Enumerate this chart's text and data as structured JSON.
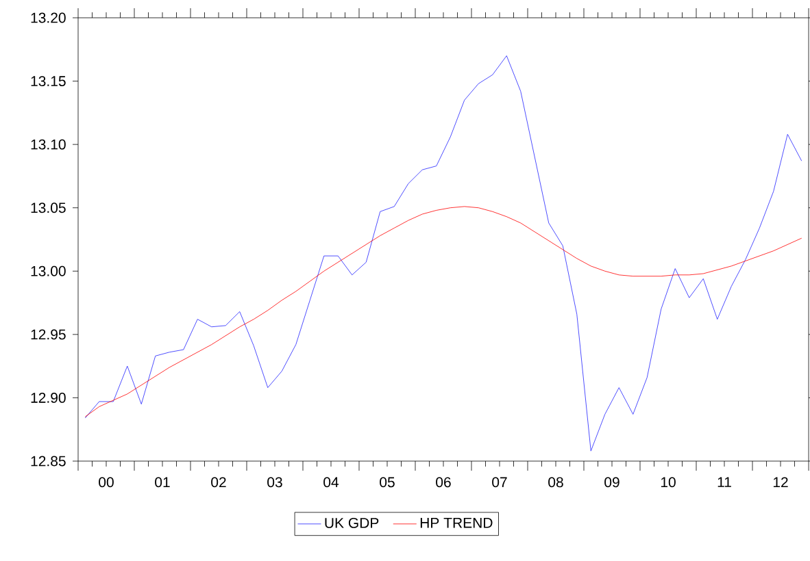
{
  "chart_data": {
    "type": "line",
    "x": [
      -0.375,
      -0.125,
      0.125,
      0.375,
      0.625,
      0.875,
      1.125,
      1.375,
      1.625,
      1.875,
      2.125,
      2.375,
      2.625,
      2.875,
      3.125,
      3.375,
      3.625,
      3.875,
      4.125,
      4.375,
      4.625,
      4.875,
      5.125,
      5.375,
      5.625,
      5.875,
      6.125,
      6.375,
      6.625,
      6.875,
      7.125,
      7.375,
      7.625,
      7.875,
      8.125,
      8.375,
      8.625,
      8.875,
      9.125,
      9.375,
      9.625,
      9.875,
      10.125,
      10.375,
      10.625,
      10.875,
      11.125,
      11.375,
      11.625,
      11.875,
      12.125,
      12.375
    ],
    "series": [
      {
        "name": "UK GDP",
        "color": "#2222ff",
        "values": [
          12.884,
          12.897,
          12.897,
          12.925,
          12.895,
          12.933,
          12.936,
          12.938,
          12.962,
          12.956,
          12.957,
          12.968,
          12.941,
          12.908,
          12.921,
          12.942,
          12.977,
          13.012,
          13.012,
          12.997,
          13.007,
          13.047,
          13.051,
          13.069,
          13.08,
          13.083,
          13.106,
          13.135,
          13.148,
          13.155,
          13.17,
          13.142,
          13.09,
          13.038,
          13.02,
          12.966,
          12.858,
          12.887,
          12.908,
          12.887,
          12.916,
          12.97,
          13.002,
          12.979,
          12.994,
          12.962,
          12.988,
          13.009,
          13.034,
          13.063,
          13.108,
          13.087
        ]
      },
      {
        "name": "HP TREND",
        "color": "#ff0000",
        "values": [
          12.885,
          12.893,
          12.898,
          12.903,
          12.91,
          12.917,
          12.924,
          12.93,
          12.936,
          12.942,
          12.949,
          12.956,
          12.962,
          12.969,
          12.977,
          12.984,
          12.992,
          13.0,
          13.007,
          13.014,
          13.021,
          13.028,
          13.034,
          13.04,
          13.045,
          13.048,
          13.05,
          13.051,
          13.05,
          13.047,
          13.043,
          13.038,
          13.031,
          13.024,
          13.017,
          13.01,
          13.004,
          13.0,
          12.997,
          12.996,
          12.996,
          12.996,
          12.997,
          12.997,
          12.998,
          13.001,
          13.004,
          13.008,
          13.012,
          13.016,
          13.021,
          13.026
        ]
      }
    ],
    "xlim": [
      -0.5,
      12.5
    ],
    "xticks": [
      {
        "value": -0.5,
        "label": null
      },
      {
        "value": 0,
        "label": "00"
      },
      {
        "value": 0.5,
        "label": null
      },
      {
        "value": 1,
        "label": "01"
      },
      {
        "value": 1.5,
        "label": null
      },
      {
        "value": 2,
        "label": "02"
      },
      {
        "value": 2.5,
        "label": null
      },
      {
        "value": 3,
        "label": "03"
      },
      {
        "value": 3.5,
        "label": null
      },
      {
        "value": 4,
        "label": "04"
      },
      {
        "value": 4.5,
        "label": null
      },
      {
        "value": 5,
        "label": "05"
      },
      {
        "value": 5.5,
        "label": null
      },
      {
        "value": 6,
        "label": "06"
      },
      {
        "value": 6.5,
        "label": null
      },
      {
        "value": 7,
        "label": "07"
      },
      {
        "value": 7.5,
        "label": null
      },
      {
        "value": 8,
        "label": "08"
      },
      {
        "value": 8.5,
        "label": null
      },
      {
        "value": 9,
        "label": "09"
      },
      {
        "value": 9.5,
        "label": null
      },
      {
        "value": 10,
        "label": "10"
      },
      {
        "value": 10.5,
        "label": null
      },
      {
        "value": 11,
        "label": "11"
      },
      {
        "value": 11.5,
        "label": null
      },
      {
        "value": 12,
        "label": "12"
      },
      {
        "value": 12.5,
        "label": null
      }
    ],
    "ylim": [
      12.85,
      13.2
    ],
    "yticks": [
      12.85,
      {
        "value": 12.9,
        "label": "12.90"
      },
      12.95,
      {
        "value": 13.0,
        "label": "13.00"
      },
      13.05,
      {
        "value": 13.1,
        "label": "13.10"
      },
      13.15,
      {
        "value": 13.2,
        "label": "13.20"
      }
    ],
    "grid": false,
    "legend": "bottom",
    "marker": "none",
    "line_style": "solid"
  }
}
